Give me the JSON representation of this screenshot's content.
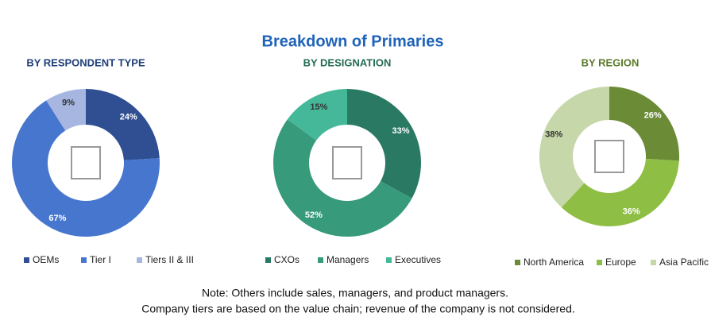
{
  "title": "Breakdown of Primaries",
  "chart_data": [
    {
      "type": "donut",
      "title": "BY RESPONDENT TYPE",
      "categories": [
        "OEMs",
        "Tier I",
        "Tiers II & III"
      ],
      "values": [
        24,
        67,
        9
      ],
      "value_labels": [
        "24%",
        "67%",
        "9%"
      ],
      "colors": [
        "#2f4f92",
        "#4776cf",
        "#a6b6e0"
      ]
    },
    {
      "type": "donut",
      "title": "BY DESIGNATION",
      "categories": [
        "CXOs",
        "Managers",
        "Executives"
      ],
      "values": [
        33,
        52,
        15
      ],
      "value_labels": [
        "33%",
        "52%",
        "15%"
      ],
      "colors": [
        "#2a7a63",
        "#379a7b",
        "#45b89a"
      ]
    },
    {
      "type": "donut",
      "title": "BY REGION",
      "categories": [
        "North America",
        "Europe",
        "Asia Pacific"
      ],
      "values": [
        26,
        36,
        38
      ],
      "value_labels": [
        "26%",
        "36%",
        "38%"
      ],
      "colors": [
        "#6b8b36",
        "#8fbe45",
        "#c6d7a9"
      ]
    }
  ],
  "note": [
    "Note: Others include sales, managers, and product managers.",
    "Company tiers are based on the value chain; revenue of the company is not considered."
  ]
}
